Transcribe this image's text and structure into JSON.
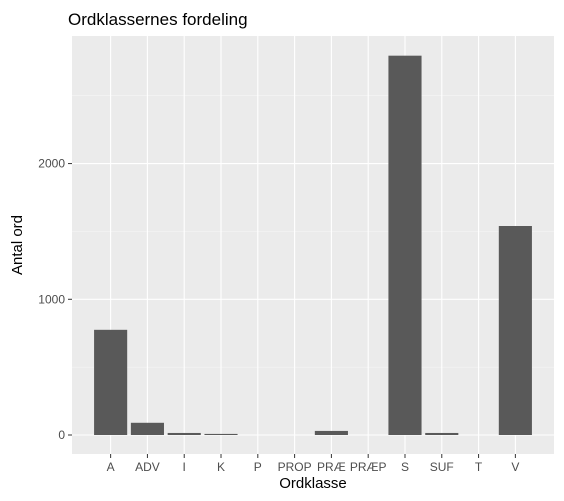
{
  "chart_data": {
    "type": "bar",
    "title": "Ordklassernes fordeling",
    "xlabel": "Ordklasse",
    "ylabel": "Antal ord",
    "categories": [
      "A",
      "ADV",
      "I",
      "K",
      "P",
      "PROP",
      "PRÆ",
      "PRÆP",
      "S",
      "SUF",
      "T",
      "V"
    ],
    "values": [
      775,
      90,
      15,
      8,
      0,
      0,
      30,
      0,
      2795,
      15,
      0,
      1540
    ],
    "yticks": [
      0,
      1000,
      2000
    ],
    "ylim": [
      -140,
      2940
    ],
    "grid": true,
    "legend": "none",
    "colors": {
      "bar": "#595959",
      "panel": "#ebebeb",
      "grid_major": "#ffffff",
      "grid_minor": "#f5f5f5"
    }
  }
}
